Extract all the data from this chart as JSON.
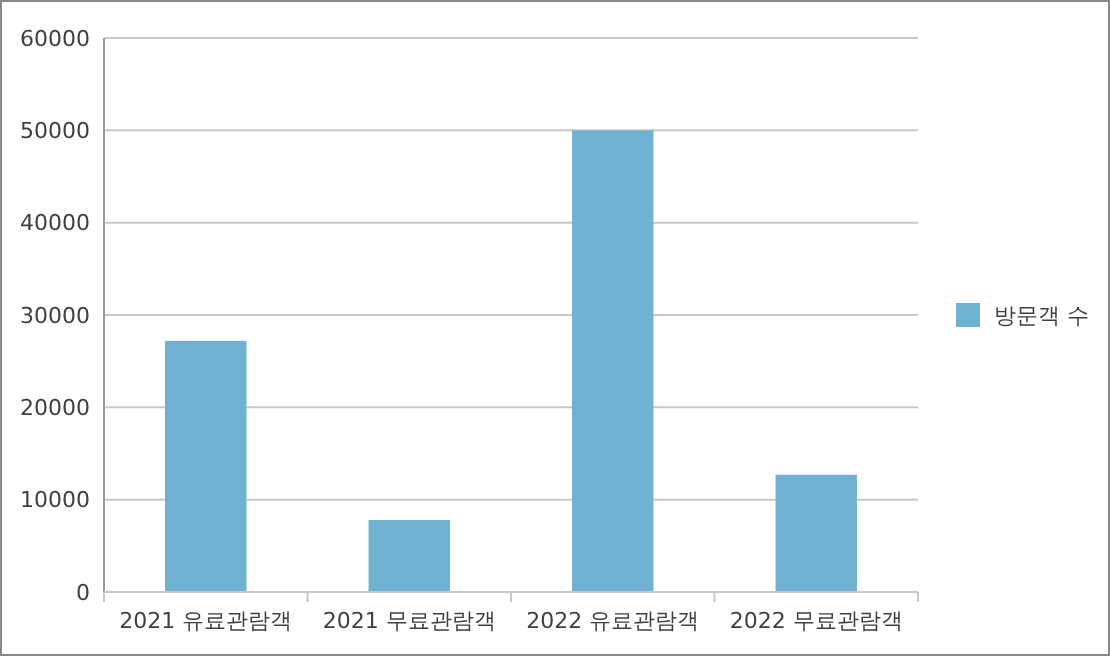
{
  "chart_data": {
    "type": "bar",
    "categories": [
      "2021 유료관람객",
      "2021 무료관람객",
      "2022 유료관람객",
      "2022 무료관람객"
    ],
    "series": [
      {
        "name": "방문객 수",
        "color": "#70b0d0",
        "values": [
          27200,
          7800,
          50000,
          12700
        ]
      }
    ],
    "ylim": [
      0,
      60000
    ],
    "yticks": [
      0,
      10000,
      20000,
      30000,
      40000,
      50000,
      60000
    ],
    "grid": "y",
    "legend": "right"
  }
}
